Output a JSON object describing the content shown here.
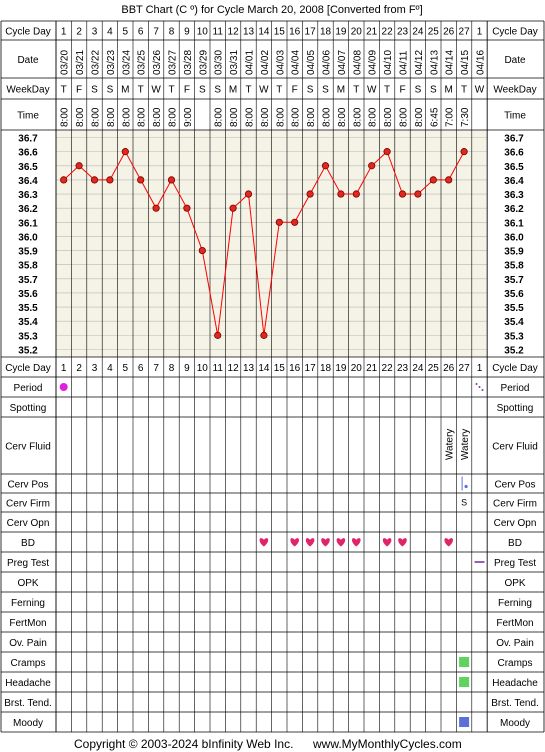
{
  "title": "BBT Chart (C º) for Cycle March 20, 2008  [Converted from Fº]",
  "footer": {
    "copyright": "Copyright © 2003-2024 bInfinity Web Inc.",
    "site": "www.MyMonthlyCycles.com"
  },
  "row_labels": {
    "cycle_day": "Cycle Day",
    "date": "Date",
    "weekday": "WeekDay",
    "time": "Time"
  },
  "lower_rows": [
    "Period",
    "Spotting",
    "Cerv Fluid",
    "Cerv Pos",
    "Cerv Firm",
    "Cerv Opn",
    "BD",
    "Preg Test",
    "OPK",
    "Ferning",
    "FertMon",
    "Ov. Pain",
    "Cramps",
    "Headache",
    "Brst. Tend.",
    "Moody"
  ],
  "colors": {
    "grid": "#000000",
    "plot_bg": "#f5f3e6",
    "line": "#ff0000",
    "point": "#e0281e",
    "period": "#e020e0",
    "heart": "#e0246a",
    "green": "#5ed35e",
    "blue": "#5a72d6",
    "purple": "#7a3c9c"
  },
  "chart_data": {
    "type": "line",
    "y_ticks": [
      "36.7",
      "36.6",
      "36.5",
      "36.4",
      "36.3",
      "36.2",
      "36.1",
      "36.0",
      "35.9",
      "35.8",
      "35.7",
      "35.6",
      "35.5",
      "35.4",
      "35.3",
      "35.2"
    ],
    "ylim": [
      35.2,
      36.7
    ],
    "cycle_days": [
      "1",
      "2",
      "3",
      "4",
      "5",
      "6",
      "7",
      "8",
      "9",
      "10",
      "11",
      "12",
      "13",
      "14",
      "15",
      "16",
      "17",
      "18",
      "19",
      "20",
      "21",
      "22",
      "23",
      "24",
      "25",
      "26",
      "27",
      "1"
    ],
    "dates": [
      "03/20",
      "03/21",
      "03/22",
      "03/23",
      "03/24",
      "03/25",
      "03/26",
      "03/27",
      "03/28",
      "03/29",
      "03/30",
      "03/31",
      "04/01",
      "04/02",
      "04/03",
      "04/04",
      "04/05",
      "04/06",
      "04/07",
      "04/08",
      "04/09",
      "04/10",
      "04/11",
      "04/12",
      "04/13",
      "04/14",
      "04/15",
      "04/16"
    ],
    "weekdays": [
      "T",
      "F",
      "S",
      "S",
      "M",
      "T",
      "W",
      "T",
      "F",
      "S",
      "S",
      "M",
      "T",
      "W",
      "T",
      "F",
      "S",
      "S",
      "M",
      "T",
      "W",
      "T",
      "F",
      "S",
      "S",
      "M",
      "T",
      "W"
    ],
    "times": [
      "8:00",
      "8:00",
      "8:00",
      "8:00",
      "8:00",
      "8:00",
      "8:00",
      "8:00",
      "9:00",
      "",
      "8:00",
      "8:00",
      "8:00",
      "8:00",
      "8:00",
      "8:00",
      "8:00",
      "8:00",
      "8:00",
      "8:00",
      "8:00",
      "8:00",
      "8:00",
      "8:00",
      "6:45",
      "7:00",
      "7:30",
      ""
    ],
    "temps": [
      36.4,
      36.5,
      36.4,
      36.4,
      36.6,
      36.4,
      36.2,
      36.4,
      36.2,
      35.9,
      35.3,
      36.2,
      36.3,
      35.3,
      36.1,
      36.1,
      36.3,
      36.5,
      36.3,
      36.3,
      36.5,
      36.6,
      36.3,
      36.3,
      36.4,
      36.4,
      36.6,
      null
    ],
    "period_days": [
      1
    ],
    "period_spotting_mark_day": 28,
    "cerv_fluid": [
      {
        "day": 26,
        "text": "Watery"
      },
      {
        "day": 27,
        "text": "Watery"
      }
    ],
    "cerv_pos_day": 27,
    "cerv_firm": [
      {
        "day": 27,
        "text": "S"
      }
    ],
    "bd_days": [
      14,
      16,
      17,
      18,
      19,
      20,
      22,
      23,
      26
    ],
    "preg_test_day": 28,
    "cramps_days": [
      27
    ],
    "headache_days": [
      27
    ],
    "moody_days": [
      27
    ]
  }
}
